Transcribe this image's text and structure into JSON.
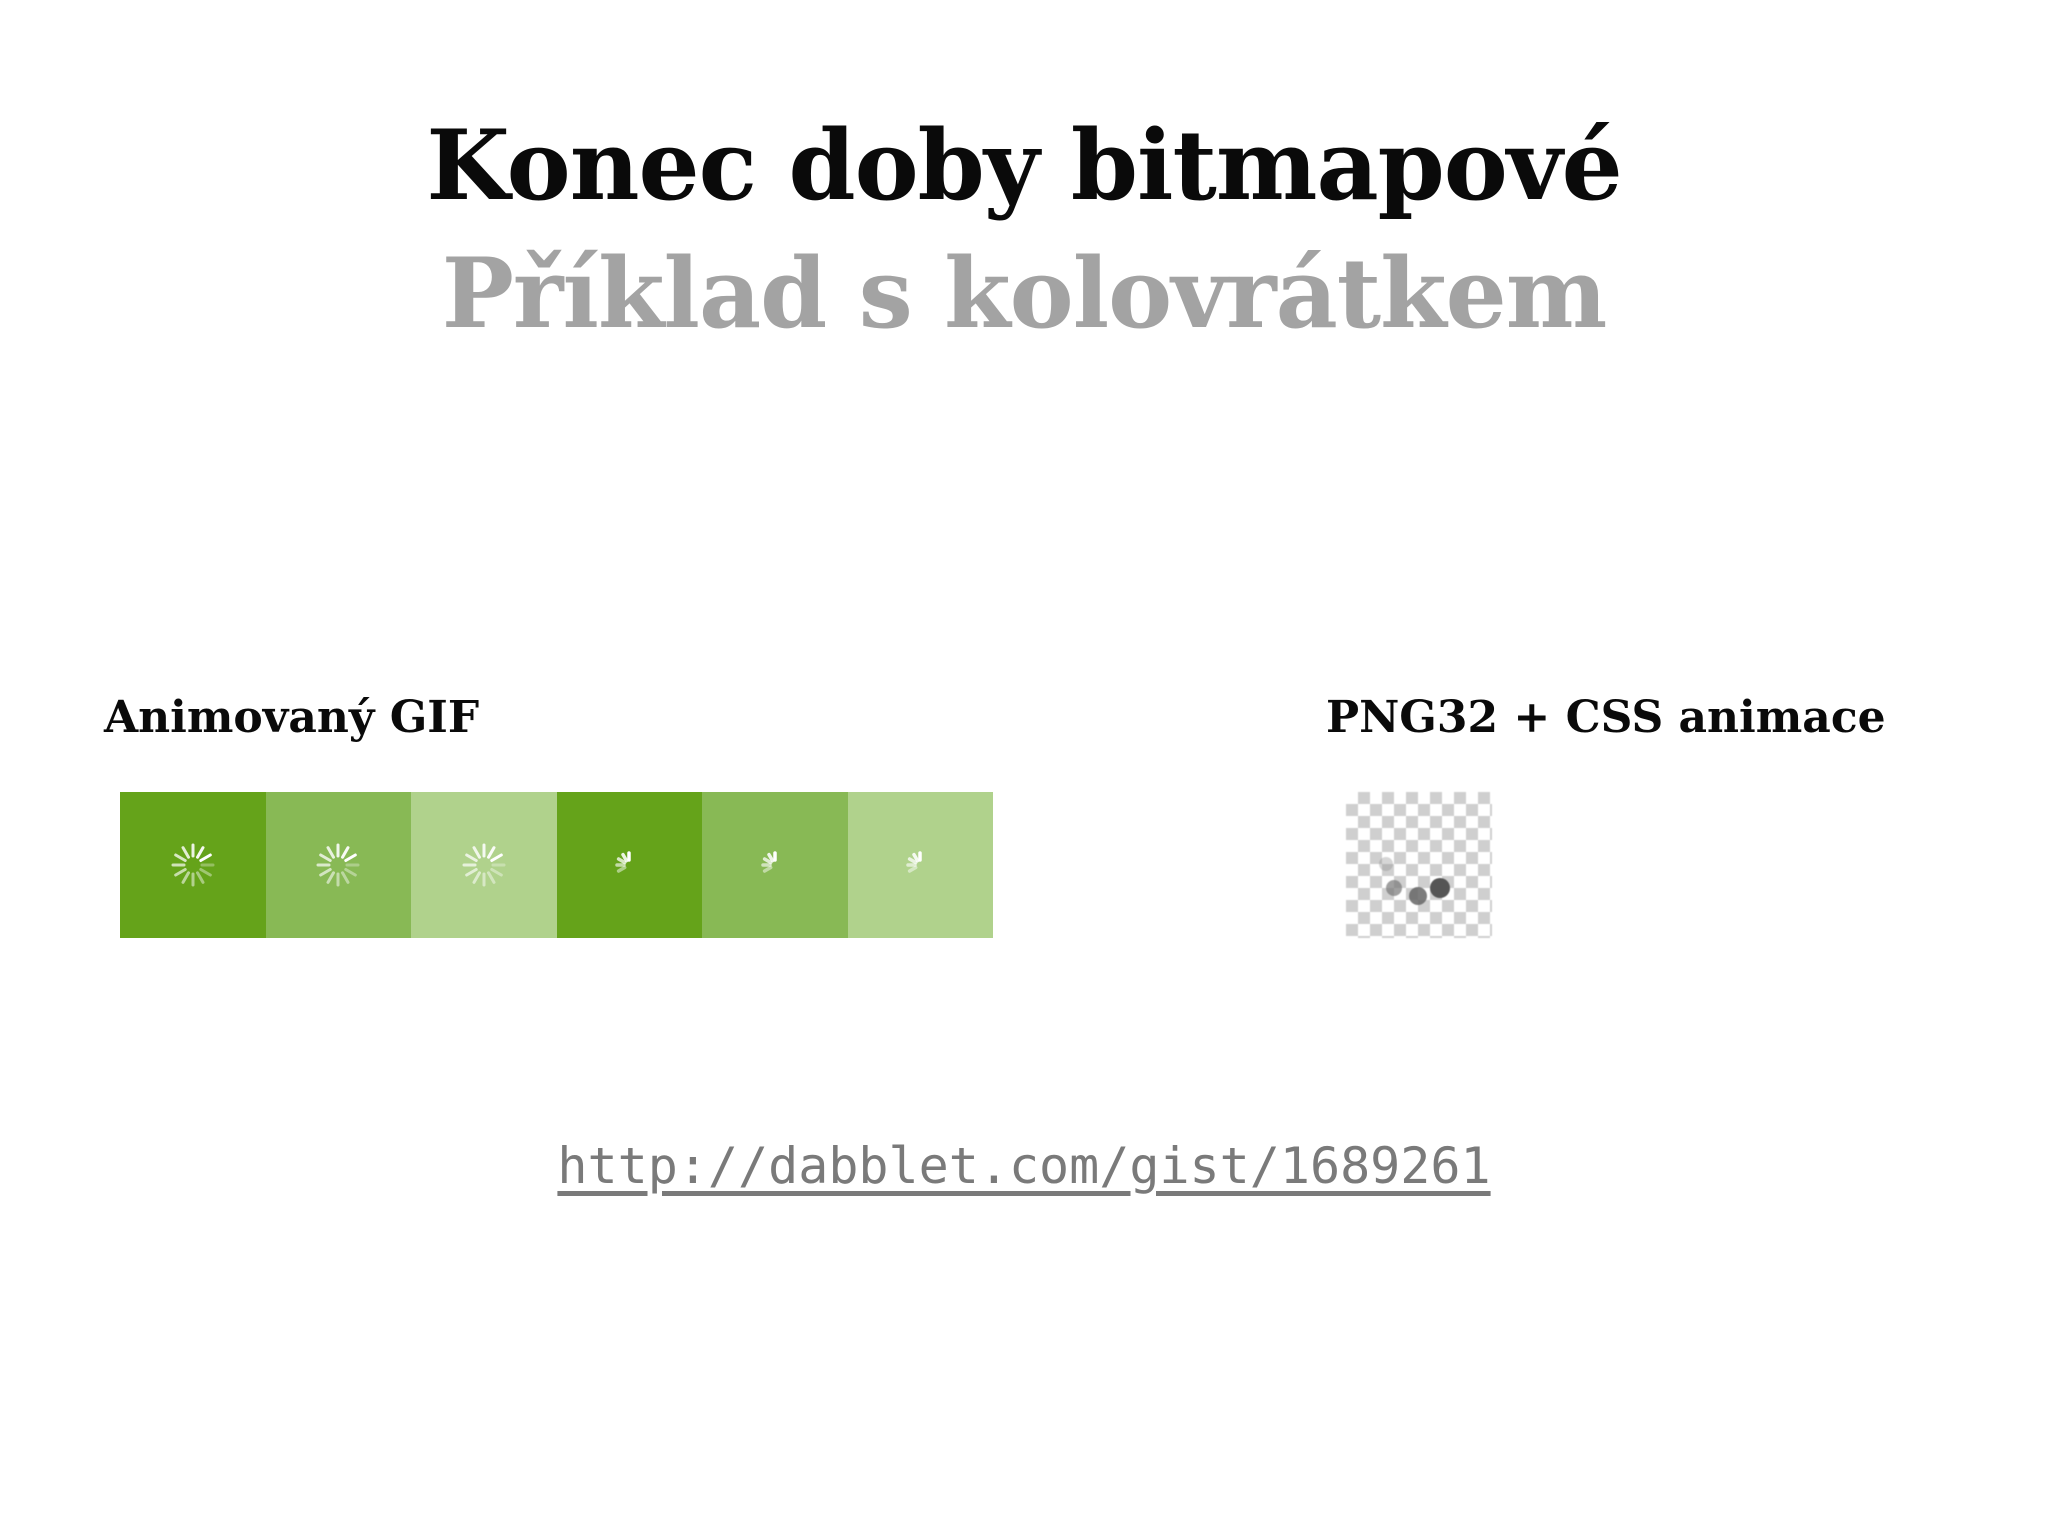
{
  "slide": {
    "title": "Konec doby bitmapové",
    "subtitle": "Příklad s kolovrátkem"
  },
  "gif_section": {
    "label": "Animovaný GIF",
    "frame_colors": [
      "#65a31a",
      "#88b955",
      "#b0d28c",
      "#65a31a",
      "#88b955",
      "#b0d28c"
    ],
    "frame_spinner": [
      "full",
      "full",
      "full",
      "partial",
      "partial",
      "partial"
    ]
  },
  "png_section": {
    "label": "PNG32 + CSS animace"
  },
  "link": {
    "text": "http://dabblet.com/gist/1689261"
  }
}
